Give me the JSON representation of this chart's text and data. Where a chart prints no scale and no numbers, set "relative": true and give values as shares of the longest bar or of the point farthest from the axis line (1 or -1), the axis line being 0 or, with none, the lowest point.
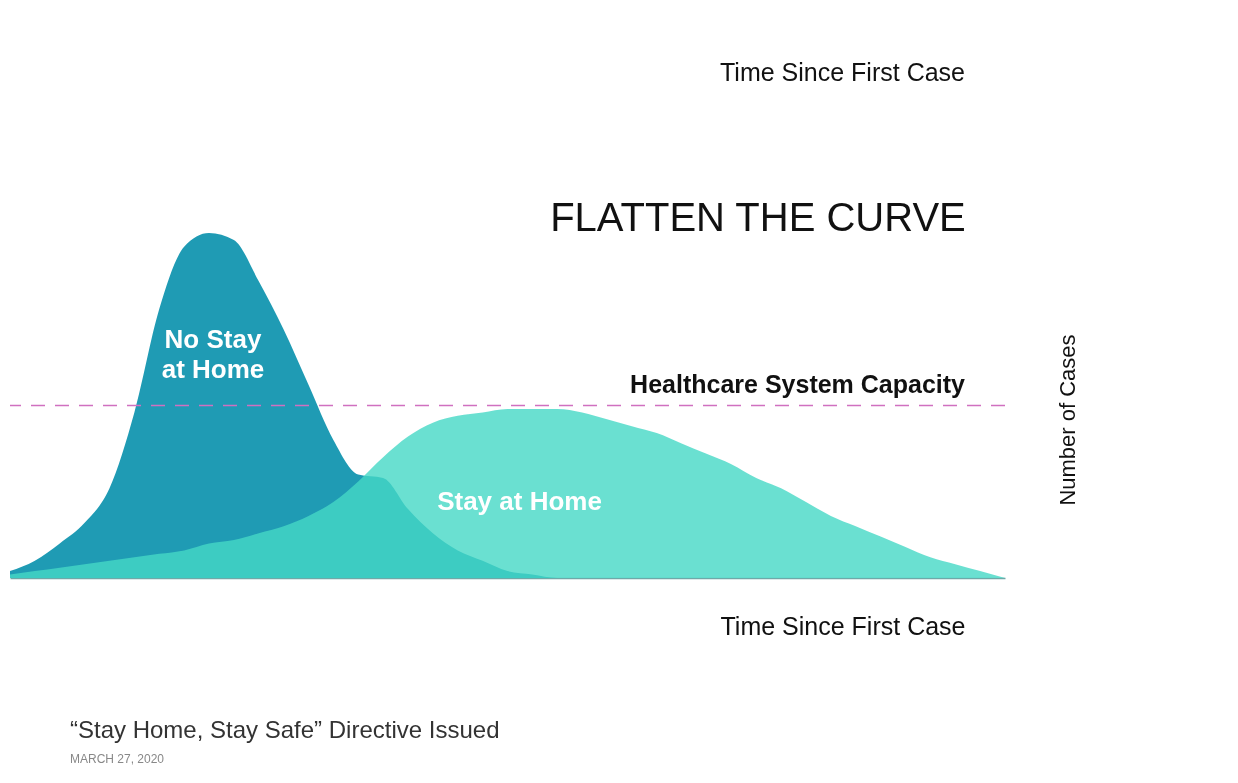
{
  "chart_data": {
    "type": "area",
    "title": "FLATTEN THE CURVE",
    "xlabel": "Time Since First Case",
    "relative": true,
    "categories": [
      null,
      null,
      null,
      null,
      null,
      null,
      null,
      null,
      null,
      null,
      null,
      null,
      null,
      null,
      null,
      null,
      null,
      null,
      null,
      null,
      null,
      null,
      null,
      null,
      null,
      null,
      null,
      null,
      null,
      null,
      null,
      null,
      null,
      null,
      null,
      null,
      null,
      null,
      null,
      null,
      null
    ],
    "series": [
      {
        "name": "No Stay at Home",
        "color": "#1f9bb4",
        "values": [
          0.02,
          0.05,
          0.1,
          0.16,
          0.26,
          0.48,
          0.78,
          0.96,
          1.0,
          0.98,
          0.86,
          0.72,
          0.56,
          0.4,
          0.3,
          0.29,
          0.2,
          0.13,
          0.08,
          0.05,
          0.02,
          0.01,
          0,
          0,
          0,
          0,
          0,
          0,
          0,
          0,
          0,
          0,
          0,
          0,
          0,
          0,
          0,
          0,
          0,
          0,
          0
        ]
      },
      {
        "name": "Stay at Home",
        "color": "#45d8c5",
        "values": [
          0.01,
          0.02,
          0.03,
          0.04,
          0.05,
          0.06,
          0.07,
          0.08,
          0.1,
          0.11,
          0.13,
          0.15,
          0.18,
          0.22,
          0.28,
          0.35,
          0.41,
          0.45,
          0.47,
          0.48,
          0.49,
          0.49,
          0.49,
          0.48,
          0.46,
          0.44,
          0.42,
          0.39,
          0.36,
          0.33,
          0.29,
          0.26,
          0.22,
          0.18,
          0.15,
          0.12,
          0.09,
          0.06,
          0.04,
          0.02,
          0
        ]
      }
    ],
    "ref_lines": [
      {
        "axis": "y",
        "value": 0.5,
        "label": "Healthcare System Capacity",
        "color": "#d070c0",
        "line_style": "dashed"
      }
    ],
    "annotations": [
      "Time Since First Case",
      "Number of Cases",
      "“Stay Home, Stay Safe” Directive Issued",
      "MARCH 27, 2020"
    ]
  }
}
